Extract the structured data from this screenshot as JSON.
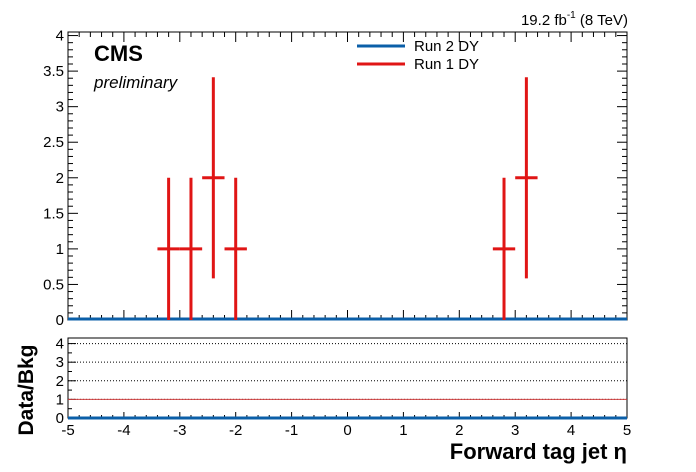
{
  "lumi_label": {
    "main": "19.2 fb",
    "sup": "-1",
    "tail": " (8 TeV)"
  },
  "cms_label": "CMS",
  "preliminary_label": "preliminary",
  "legend": [
    {
      "name": "Run 2 DY",
      "color": "#0b5fa8"
    },
    {
      "name": "Run 1 DY",
      "color": "#e01515"
    }
  ],
  "colors": {
    "run1": "#e01515",
    "run2": "#0b5fa8",
    "ratio_line": "#d04040",
    "axis": "#000000"
  },
  "chart_data": [
    {
      "type": "scatter",
      "title": "",
      "xlabel": "Forward tag jet η",
      "ylabel": "",
      "xlim": [
        -5,
        5
      ],
      "ylim": [
        0,
        4.05
      ],
      "x_ticks": [
        -5,
        -4,
        -3,
        -2,
        -1,
        0,
        1,
        2,
        3,
        4,
        5
      ],
      "x_tick_labels": [
        "-5",
        "-4",
        "-3",
        "-2",
        "-1",
        "0",
        "1",
        "2",
        "3",
        "4",
        "5"
      ],
      "y_ticks": [
        0,
        0.5,
        1,
        1.5,
        2,
        2.5,
        3,
        3.5,
        4
      ],
      "y_tick_labels": [
        "0",
        "0.5",
        "1",
        "1.5",
        "2",
        "2.5",
        "3",
        "3.5",
        "4"
      ],
      "series": [
        {
          "name": "Run 2 DY",
          "style": "histogram",
          "points": [
            {
              "x": -5,
              "y": 0
            },
            {
              "x": 5,
              "y": 0
            }
          ]
        },
        {
          "name": "Run 1 DY",
          "style": "points-with-errors",
          "points": [
            {
              "x": -3.2,
              "y": 1,
              "xerr": 0.2,
              "yerr": 1
            },
            {
              "x": -2.8,
              "y": 1,
              "xerr": 0.2,
              "yerr": 1
            },
            {
              "x": -2.4,
              "y": 2,
              "xerr": 0.2,
              "yerr": 1.414
            },
            {
              "x": -2.0,
              "y": 1,
              "xerr": 0.2,
              "yerr": 1
            },
            {
              "x": 2.8,
              "y": 1,
              "xerr": 0.2,
              "yerr": 1
            },
            {
              "x": 3.2,
              "y": 2,
              "xerr": 0.2,
              "yerr": 1.414
            }
          ]
        }
      ],
      "legend_position": "top-right"
    },
    {
      "type": "line",
      "title": "",
      "xlabel": "Forward tag jet η",
      "ylabel": "Data/Bkg",
      "xlim": [
        -5,
        5
      ],
      "ylim": [
        0,
        4.3
      ],
      "y_ticks": [
        0,
        1,
        2,
        3,
        4
      ],
      "y_tick_labels": [
        "0",
        "1",
        "2",
        "3",
        "4"
      ],
      "gridlines_y": [
        1,
        2,
        3,
        4
      ],
      "reference_line": 1,
      "series": [
        {
          "name": "",
          "points": [
            {
              "x": -5,
              "y": 0
            },
            {
              "x": 5,
              "y": 0
            }
          ]
        }
      ]
    }
  ]
}
